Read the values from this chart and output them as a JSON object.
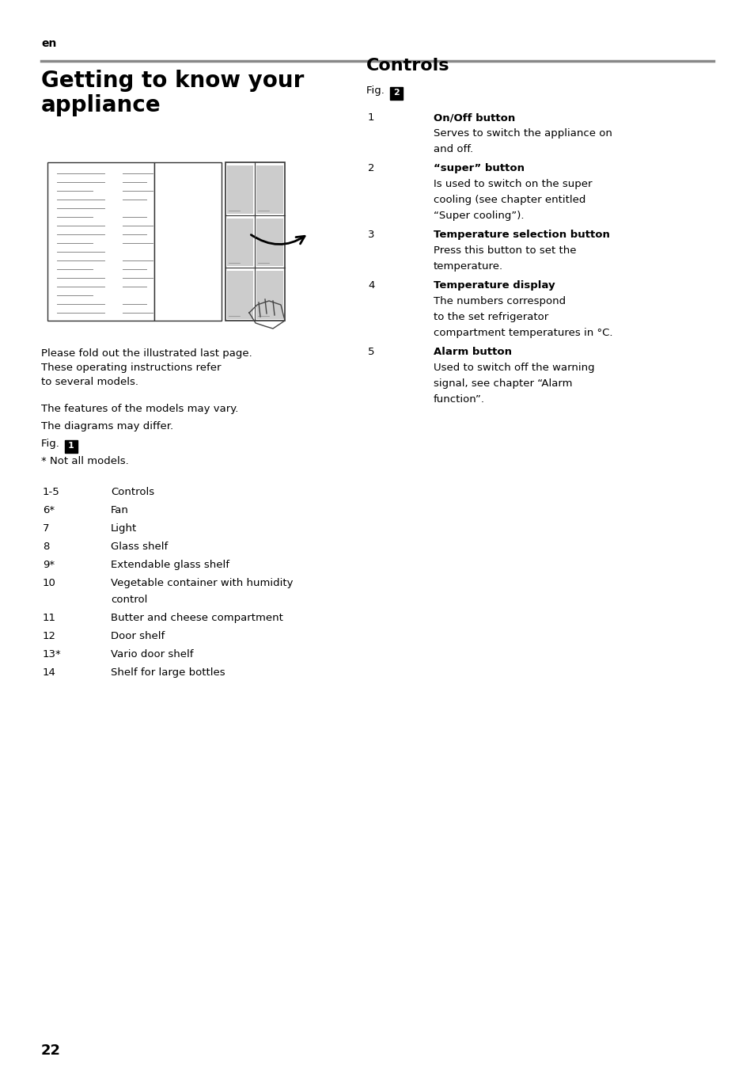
{
  "bg_color": "#ffffff",
  "text_color": "#000000",
  "page_width": 9.54,
  "page_height": 13.54,
  "lang_label": "en",
  "section_title": "Getting to know your\nappliance",
  "controls_title": "Controls",
  "fig2_label": "Fig. ",
  "fig2_num": "2",
  "fig1_label": "Fig. ",
  "fig1_num": "1",
  "left_col_intro": "Please fold out the illustrated last page.\nThese operating instructions refer\nto several models.",
  "left_col_features": "The features of the models may vary.",
  "left_col_diagrams": "The diagrams may differ.",
  "left_col_not_all": "* Not all models.",
  "left_col_list": [
    {
      "num": "1-5",
      "text": "Controls"
    },
    {
      "num": "6*",
      "text": "Fan"
    },
    {
      "num": "7",
      "text": "Light"
    },
    {
      "num": "8",
      "text": "Glass shelf"
    },
    {
      "num": "9*",
      "text": "Extendable glass shelf"
    },
    {
      "num": "10",
      "text": "Vegetable container with humidity\ncontrol"
    },
    {
      "num": "11",
      "text": "Butter and cheese compartment"
    },
    {
      "num": "12",
      "text": "Door shelf"
    },
    {
      "num": "13*",
      "text": "Vario door shelf"
    },
    {
      "num": "14",
      "text": "Shelf for large bottles"
    }
  ],
  "right_items": [
    {
      "number": "1",
      "bold_label": "On/Off button",
      "description": "Serves to switch the appliance on\nand off."
    },
    {
      "number": "2",
      "bold_label": "“super” button",
      "description": "Is used to switch on the super\ncooling (see chapter entitled\n“Super cooling”)."
    },
    {
      "number": "3",
      "bold_label": "Temperature selection button",
      "description": "Press this button to set the\ntemperature."
    },
    {
      "number": "4",
      "bold_label": "Temperature display",
      "description": "The numbers correspond\nto the set refrigerator\ncompartment temperatures in °C."
    },
    {
      "number": "5",
      "bold_label": "Alarm button",
      "description": "Used to switch off the warning\nsignal, see chapter “Alarm\nfunction”."
    }
  ],
  "page_number": "22"
}
